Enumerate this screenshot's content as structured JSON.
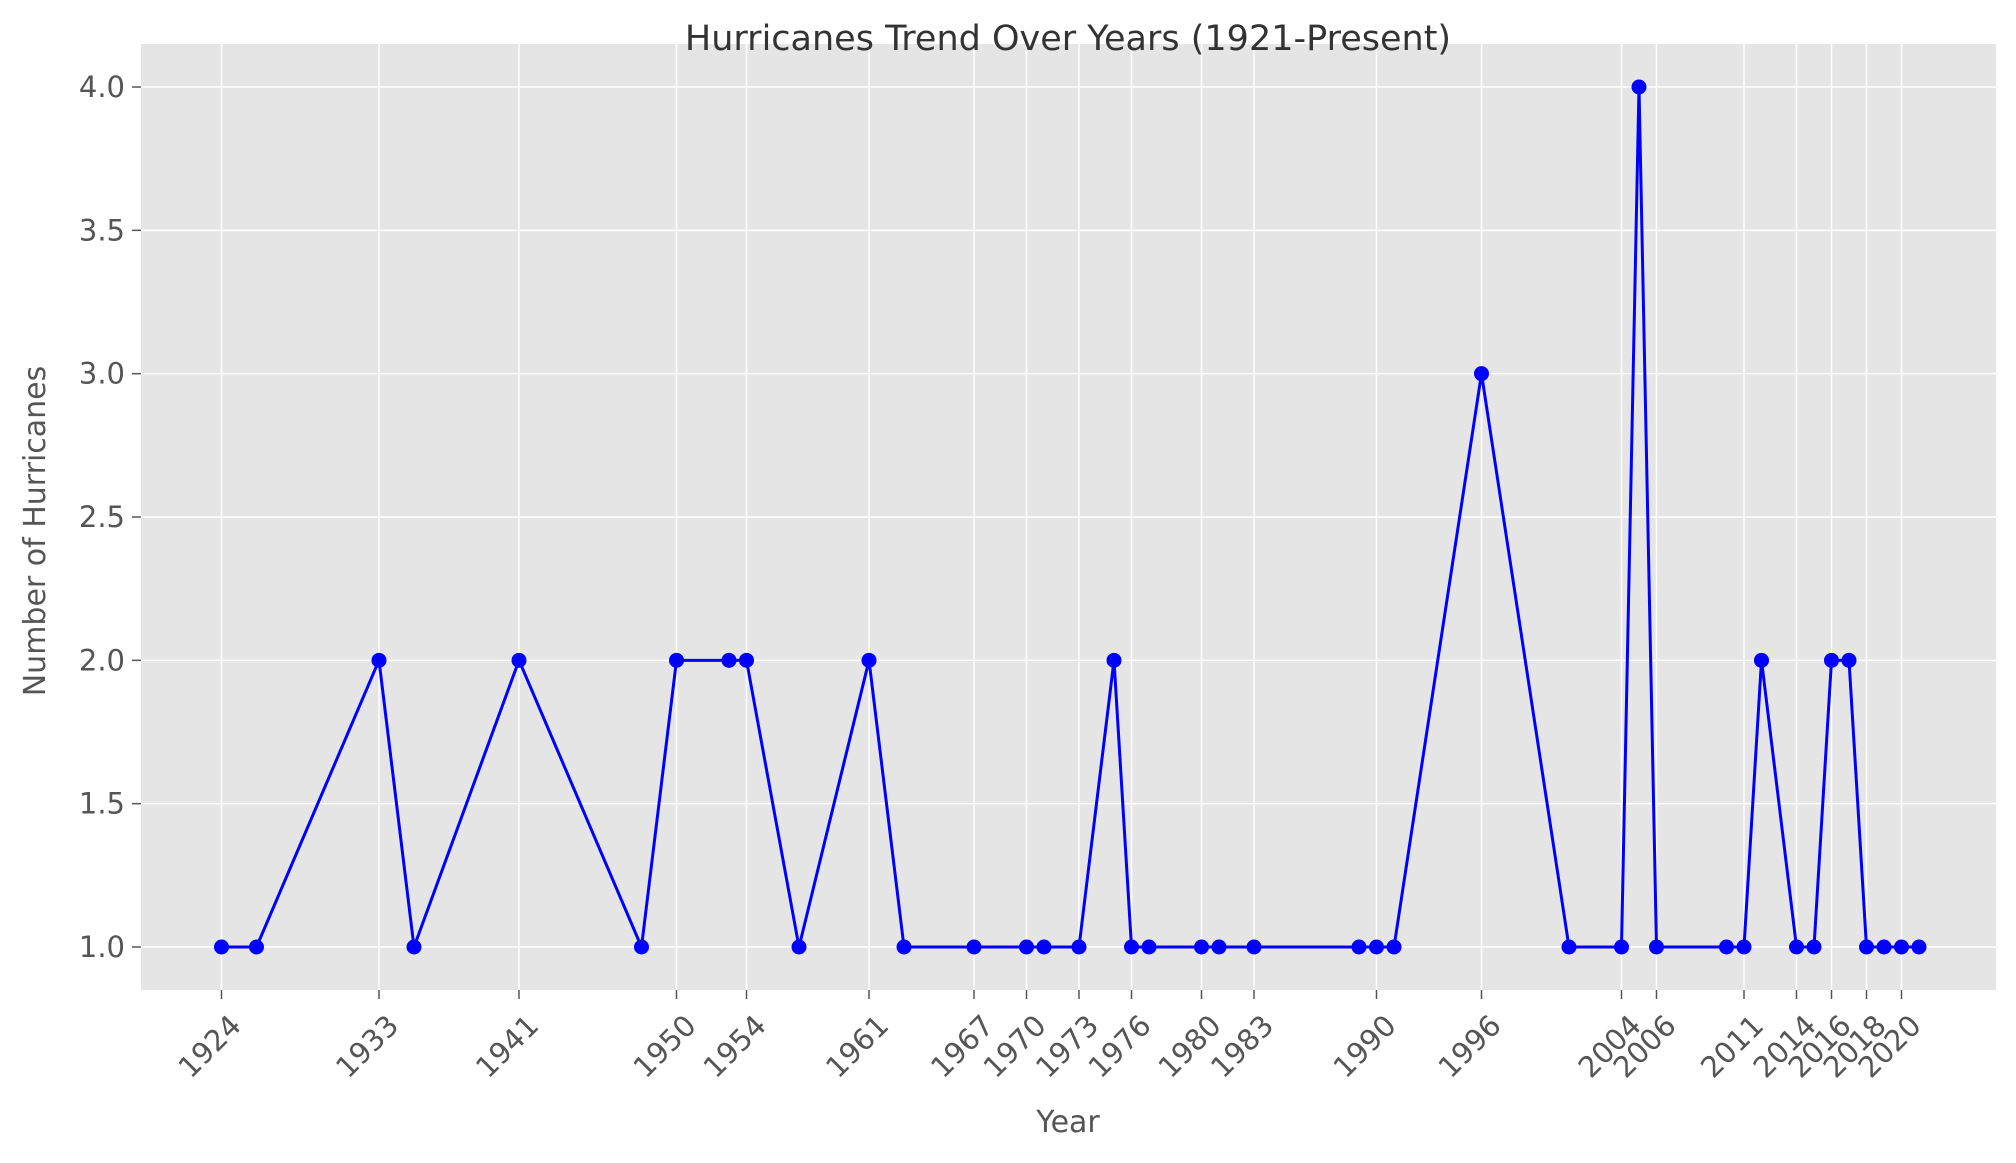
{
  "chart_data": {
    "type": "line",
    "title": "Hurricanes Trend Over Years (1921-Present)",
    "xlabel": "Year",
    "ylabel": "Number of Hurricanes",
    "xlim": [
      1919.4,
      2025.4
    ],
    "ylim": [
      0.85,
      4.15
    ],
    "grid": true,
    "x_ticks": [
      1924,
      1933,
      1941,
      1950,
      1954,
      1961,
      1967,
      1970,
      1973,
      1976,
      1980,
      1983,
      1990,
      1996,
      2004,
      2006,
      2011,
      2014,
      2016,
      2018,
      2020
    ],
    "y_ticks": [
      1.0,
      1.5,
      2.0,
      2.5,
      3.0,
      3.5,
      4.0
    ],
    "y_tick_labels": [
      "1.0",
      "1.5",
      "2.0",
      "2.5",
      "3.0",
      "3.5",
      "4.0"
    ],
    "series": [
      {
        "name": "",
        "color": "#0000ff",
        "marker": "circle",
        "x": [
          1924,
          1926,
          1933,
          1935,
          1941,
          1948,
          1950,
          1953,
          1954,
          1957,
          1961,
          1963,
          1967,
          1970,
          1971,
          1973,
          1975,
          1976,
          1977,
          1980,
          1981,
          1983,
          1989,
          1990,
          1991,
          1996,
          2001,
          2004,
          2005,
          2006,
          2010,
          2011,
          2012,
          2014,
          2015,
          2016,
          2017,
          2018,
          2019,
          2020,
          2021
        ],
        "y": [
          1,
          1,
          2,
          1,
          2,
          1,
          2,
          2,
          2,
          1,
          2,
          1,
          1,
          1,
          1,
          1,
          2,
          1,
          1,
          1,
          1,
          1,
          1,
          1,
          1,
          3,
          1,
          1,
          4,
          1,
          1,
          1,
          2,
          1,
          1,
          2,
          2,
          1,
          1,
          1,
          1
        ]
      }
    ]
  }
}
